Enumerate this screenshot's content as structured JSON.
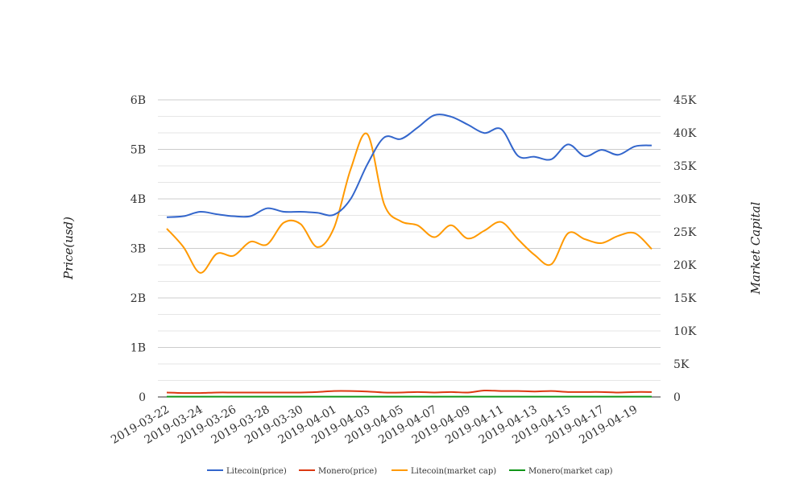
{
  "chart_data": {
    "type": "line",
    "title": "",
    "xlabel": "",
    "ylabel": "Price(usd)",
    "y2label": "Market Capital",
    "ylim": [
      0,
      6000000000
    ],
    "y2lim": [
      0,
      45000
    ],
    "yticks": [
      "0",
      "1B",
      "2B",
      "3B",
      "4B",
      "5B",
      "6B"
    ],
    "y2ticks": [
      "0",
      "5K",
      "10K",
      "15K",
      "20K",
      "25K",
      "30K",
      "35K",
      "40K",
      "45K"
    ],
    "grid": true,
    "legend": "bottom",
    "x": [
      "2019-03-22",
      "2019-03-23",
      "2019-03-24",
      "2019-03-25",
      "2019-03-26",
      "2019-03-27",
      "2019-03-28",
      "2019-03-29",
      "2019-03-30",
      "2019-03-31",
      "2019-04-01",
      "2019-04-02",
      "2019-04-03",
      "2019-04-04",
      "2019-04-05",
      "2019-04-06",
      "2019-04-07",
      "2019-04-08",
      "2019-04-09",
      "2019-04-10",
      "2019-04-11",
      "2019-04-12",
      "2019-04-13",
      "2019-04-14",
      "2019-04-15",
      "2019-04-16",
      "2019-04-17",
      "2019-04-18",
      "2019-04-19",
      "2019-04-20"
    ],
    "xtick_labels": [
      "2019-03-22",
      "2019-03-24",
      "2019-03-26",
      "2019-03-28",
      "2019-03-30",
      "2019-04-01",
      "2019-04-03",
      "2019-04-05",
      "2019-04-07",
      "2019-04-09",
      "2019-04-11",
      "2019-04-13",
      "2019-04-15",
      "2019-04-17",
      "2019-04-19"
    ],
    "series": [
      {
        "name": "Litecoin(price)",
        "axis": "left",
        "color": "#3366cc",
        "unit": "B",
        "values": [
          3.63,
          3.65,
          3.74,
          3.69,
          3.65,
          3.65,
          3.81,
          3.74,
          3.74,
          3.72,
          3.68,
          4.0,
          4.7,
          5.24,
          5.21,
          5.44,
          5.69,
          5.66,
          5.5,
          5.33,
          5.41,
          4.87,
          4.85,
          4.8,
          5.1,
          4.86,
          4.99,
          4.89,
          5.06,
          5.08
        ]
      },
      {
        "name": "Monero(price)",
        "axis": "left",
        "color": "#dc3912",
        "unit": "B",
        "values": [
          0.09,
          0.08,
          0.08,
          0.09,
          0.09,
          0.09,
          0.09,
          0.09,
          0.09,
          0.1,
          0.12,
          0.12,
          0.11,
          0.09,
          0.09,
          0.1,
          0.09,
          0.1,
          0.09,
          0.13,
          0.12,
          0.12,
          0.11,
          0.12,
          0.1,
          0.1,
          0.1,
          0.09,
          0.1,
          0.1
        ]
      },
      {
        "name": "Litecoin(market cap)",
        "axis": "right",
        "color": "#ff9900",
        "unit": "K",
        "values": [
          25.5,
          22.7,
          18.8,
          21.7,
          21.4,
          23.5,
          23.1,
          26.4,
          26.2,
          22.7,
          25.6,
          34.5,
          39.8,
          29.2,
          26.6,
          26.0,
          24.2,
          26.0,
          24.0,
          25.2,
          26.5,
          23.9,
          21.5,
          20.1,
          24.8,
          23.9,
          23.3,
          24.4,
          24.8,
          22.4
        ]
      },
      {
        "name": "Monero(market cap)",
        "axis": "right",
        "color": "#109618",
        "unit": "K",
        "values": [
          0.05,
          0.05,
          0.05,
          0.05,
          0.05,
          0.05,
          0.05,
          0.05,
          0.05,
          0.05,
          0.05,
          0.05,
          0.05,
          0.05,
          0.05,
          0.05,
          0.05,
          0.05,
          0.05,
          0.05,
          0.05,
          0.05,
          0.05,
          0.05,
          0.05,
          0.05,
          0.05,
          0.05,
          0.05,
          0.05
        ]
      }
    ]
  }
}
